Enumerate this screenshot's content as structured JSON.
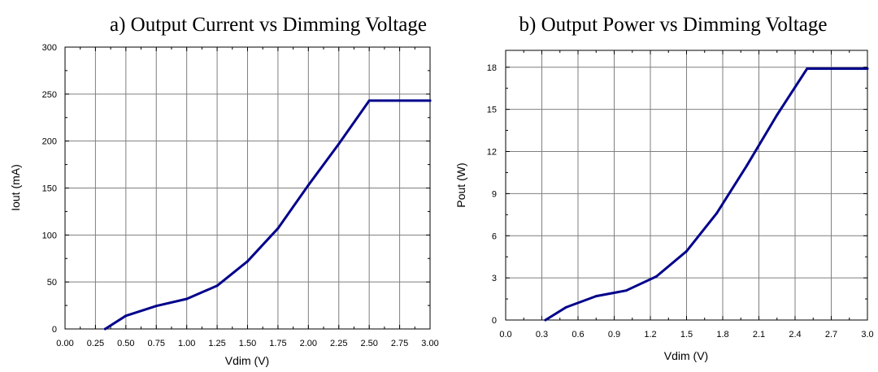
{
  "colors": {
    "series": "#00008b",
    "grid": "#7f7f7f",
    "frame": "#000000",
    "background": "#ffffff"
  },
  "chart_data": [
    {
      "type": "line",
      "title": "a) Output Current vs Dimming Voltage",
      "xlabel": "Vdim (V)",
      "ylabel": "Iout (mA)",
      "xlim": [
        0,
        3
      ],
      "ylim": [
        0,
        300
      ],
      "xticks": [
        0,
        0.25,
        0.5,
        0.75,
        1.0,
        1.25,
        1.5,
        1.75,
        2.0,
        2.25,
        2.5,
        2.75,
        3.0
      ],
      "xtick_labels": [
        "0.00",
        "0.25",
        "0.50",
        "0.75",
        "1.00",
        "1.25",
        "1.50",
        "1.75",
        "2.00",
        "2.25",
        "2.50",
        "2.75",
        "3.00"
      ],
      "yticks": [
        0,
        50,
        100,
        150,
        200,
        250,
        300
      ],
      "ytick_labels": [
        "0",
        "50",
        "100",
        "150",
        "200",
        "250",
        "300"
      ],
      "grid": true,
      "series": [
        {
          "x": [
            0.33,
            0.5,
            0.75,
            1.0,
            1.25,
            1.5,
            1.75,
            2.0,
            2.25,
            2.5,
            3.0
          ],
          "y": [
            0,
            14,
            24.5,
            32,
            46,
            72,
            107,
            153,
            197,
            243,
            243
          ]
        }
      ]
    },
    {
      "type": "line",
      "title": "b) Output Power vs Dimming Voltage",
      "xlabel": "Vdim (V)",
      "ylabel": "Pout (W)",
      "xlim": [
        0,
        3
      ],
      "ylim": [
        0,
        19.2
      ],
      "xticks": [
        0,
        0.3,
        0.6,
        0.9,
        1.2,
        1.5,
        1.8,
        2.1,
        2.4,
        2.7,
        3.0
      ],
      "xtick_labels": [
        "0.0",
        "0.3",
        "0.6",
        "0.9",
        "1.2",
        "1.5",
        "1.8",
        "2.1",
        "2.4",
        "2.7",
        "3.0"
      ],
      "yticks": [
        0,
        3,
        6,
        9,
        12,
        15,
        18
      ],
      "ytick_labels": [
        "0",
        "3",
        "6",
        "9",
        "12",
        "15",
        "18"
      ],
      "grid": true,
      "series": [
        {
          "x": [
            0.33,
            0.5,
            0.75,
            1.0,
            1.25,
            1.5,
            1.75,
            2.0,
            2.25,
            2.5,
            3.0
          ],
          "y": [
            0,
            0.9,
            1.7,
            2.1,
            3.1,
            4.9,
            7.6,
            11.0,
            14.6,
            17.9,
            17.9
          ]
        }
      ]
    }
  ]
}
